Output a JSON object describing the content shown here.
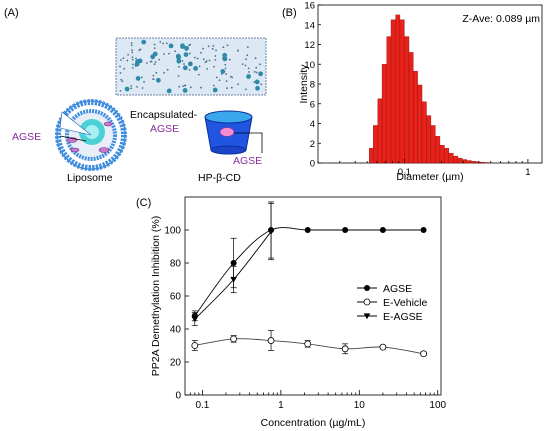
{
  "panels": {
    "a": {
      "label": "(A)",
      "liposome_label": "Liposome",
      "liposome_cargo_label": "AGSE",
      "cyclodextrin_label": "HP-β-CD",
      "encapsulated_label": "Encapsulated-",
      "encapsulated_cargo_label": "AGSE",
      "cyclodextrin_cargo_label": "AGSE"
    },
    "b": {
      "label": "(B)",
      "annotation": "Z-Ave: 0.089 µm"
    },
    "c": {
      "label": "(C)"
    }
  },
  "colors": {
    "histogram_bar": "#e8211b",
    "agse_text": "#8a2d9c",
    "liposome_blue": "#2a7fd4",
    "cyclodextrin_blue": "#1a4fd6"
  },
  "chart_data": [
    {
      "type": "bar",
      "xlabel": "Diameter (µm)",
      "ylabel": "Intensity",
      "xscale": "log",
      "xlim": [
        0.02,
        1.3
      ],
      "ylim": [
        0,
        16
      ],
      "xticks": [
        0.1,
        1
      ],
      "xtick_labels": [
        "0.1",
        "1"
      ],
      "yticks": [
        0,
        2,
        4,
        6,
        8,
        10,
        12,
        14,
        16
      ],
      "ytick_labels": [
        "0",
        "2",
        "4",
        "6",
        "8",
        "10",
        "12",
        "14",
        "16"
      ],
      "grid": false,
      "x": [
        0.052,
        0.056,
        0.061,
        0.066,
        0.072,
        0.078,
        0.085,
        0.092,
        0.1,
        0.109,
        0.118,
        0.128,
        0.139,
        0.151,
        0.164,
        0.178,
        0.194,
        0.211,
        0.229,
        0.249,
        0.271,
        0.294,
        0.32,
        0.348,
        0.378,
        0.411,
        0.446
      ],
      "values": [
        1.5,
        3.8,
        6.5,
        10,
        12.8,
        14.5,
        15,
        14.5,
        12.8,
        11.2,
        9.3,
        7.9,
        6.2,
        4.8,
        3.8,
        2.7,
        1.8,
        1.5,
        1.0,
        0.7,
        0.5,
        0.35,
        0.25,
        0.18,
        0.12,
        0.08,
        0.05
      ]
    },
    {
      "type": "line",
      "xlabel": "Concentration (µg/mL)",
      "ylabel": "PP2A Demethylation Inhibition (%)",
      "xscale": "log",
      "xlim": [
        0.06,
        110
      ],
      "ylim": [
        0,
        120
      ],
      "xticks": [
        0.1,
        1,
        10,
        100
      ],
      "xtick_labels": [
        "0.1",
        "1",
        "10",
        "100"
      ],
      "yticks": [
        0,
        20,
        40,
        60,
        80,
        100
      ],
      "ytick_labels": [
        "0",
        "20",
        "40",
        "60",
        "80",
        "100"
      ],
      "legend_position": "right",
      "series": [
        {
          "name": "AGSE",
          "marker": "filled-circle",
          "x": [
            0.08,
            0.25,
            0.75,
            2.2,
            6.6,
            20,
            66
          ],
          "y": [
            48,
            80,
            100,
            100,
            100,
            100,
            100
          ],
          "err": [
            3,
            15,
            17,
            0,
            0,
            0,
            0
          ]
        },
        {
          "name": "E-Vehicle",
          "marker": "open-circle",
          "x": [
            0.08,
            0.25,
            0.75,
            2.2,
            6.6,
            20,
            66
          ],
          "y": [
            30,
            34,
            33,
            31,
            28,
            29,
            25
          ],
          "err": [
            3,
            2,
            6,
            2,
            3,
            1,
            1
          ]
        },
        {
          "name": "E-AGSE",
          "marker": "filled-triangle-down",
          "x": [
            0.08,
            0.25,
            0.75
          ],
          "y": [
            46,
            70,
            99
          ],
          "err": [
            4,
            8,
            17
          ]
        }
      ]
    }
  ]
}
